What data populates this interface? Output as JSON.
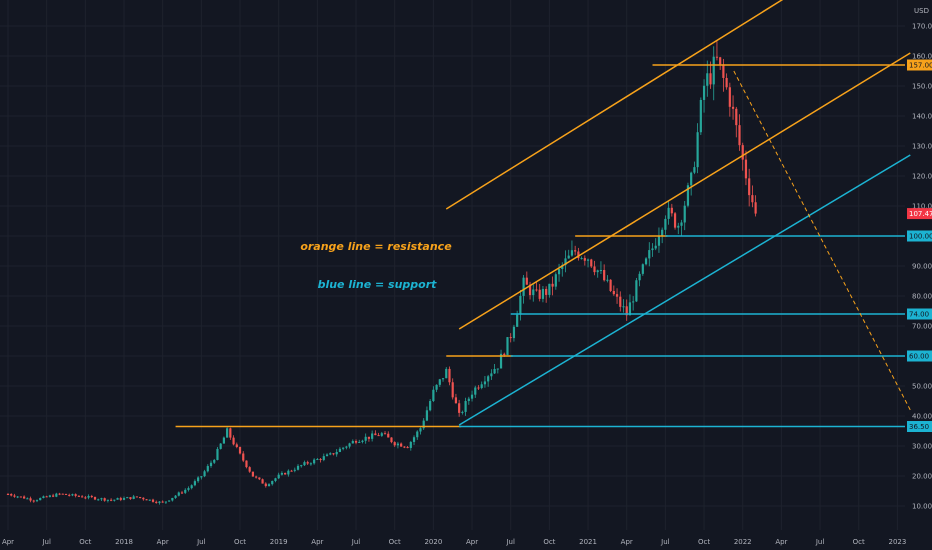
{
  "chart_data": {
    "type": "candlestick",
    "currency_label": "USD",
    "y_ticks": [
      10,
      20,
      30,
      40,
      50,
      60,
      70,
      80,
      90,
      100,
      110,
      120,
      130,
      140,
      150,
      160,
      170
    ],
    "y_tick_labels": [
      "10.00",
      "20.00",
      "30.00",
      "40.00",
      "50.00",
      "60.00",
      "70.00",
      "80.00",
      "90.00",
      "100.00",
      "110.00",
      "120.00",
      "130.00",
      "140.00",
      "150.00",
      "160.00",
      "170.00"
    ],
    "x_ticks": [
      "Apr",
      "Jul",
      "Oct",
      "2018",
      "Apr",
      "Jul",
      "Oct",
      "2019",
      "Apr",
      "Jul",
      "Oct",
      "2020",
      "Apr",
      "Jul",
      "Oct",
      "2021",
      "Apr",
      "Jul",
      "Oct",
      "2022",
      "Apr",
      "Jul",
      "Oct",
      "2023"
    ],
    "start_label": "Apr 2017",
    "last_price": 107.47,
    "last_price_label": "107.47",
    "resistance_levels": [
      {
        "value": 157,
        "label": "157.00",
        "from": "2021-06"
      },
      {
        "value": 100,
        "label": "",
        "from": "2020-12"
      },
      {
        "value": 60,
        "label": "",
        "from": "2020-02"
      },
      {
        "value": 36.5,
        "label": "",
        "from": "2018-05"
      }
    ],
    "support_levels": [
      {
        "value": 100,
        "label": "100.00",
        "from": "2021-07"
      },
      {
        "value": 74,
        "label": "74.00",
        "from": "2020-07"
      },
      {
        "value": 60,
        "label": "60.00",
        "from": "2020-07"
      },
      {
        "value": 36.5,
        "label": "36.50",
        "from": "2020-03"
      }
    ],
    "channel_lines": [
      {
        "color": "orange",
        "from": [
          "2020-02",
          109
        ],
        "to": [
          "2022-12",
          200
        ]
      },
      {
        "color": "orange",
        "from": [
          "2020-03",
          69
        ],
        "to": [
          "2023-02",
          161
        ]
      },
      {
        "color": "blue",
        "from": [
          "2020-03",
          37
        ],
        "to": [
          "2023-02",
          127
        ]
      }
    ],
    "projection": {
      "color": "orange",
      "style": "dashed",
      "from": [
        "2021-12",
        155
      ],
      "to": [
        "2023-02",
        42
      ]
    },
    "price_path": [
      [
        "2017-04",
        14
      ],
      [
        "2017-06",
        12
      ],
      [
        "2017-08",
        14
      ],
      [
        "2017-10",
        13
      ],
      [
        "2017-12",
        12
      ],
      [
        "2018-02",
        13
      ],
      [
        "2018-04",
        11
      ],
      [
        "2018-06",
        16
      ],
      [
        "2018-07",
        20
      ],
      [
        "2018-08",
        26
      ],
      [
        "2018-09",
        35
      ],
      [
        "2018-10",
        27
      ],
      [
        "2018-11",
        20
      ],
      [
        "2018-12",
        17
      ],
      [
        "2019-01",
        20
      ],
      [
        "2019-03",
        24
      ],
      [
        "2019-05",
        27
      ],
      [
        "2019-07",
        32
      ],
      [
        "2019-09",
        34
      ],
      [
        "2019-10",
        31
      ],
      [
        "2019-11",
        30
      ],
      [
        "2019-12",
        36
      ],
      [
        "2020-01",
        48
      ],
      [
        "2020-02",
        55
      ],
      [
        "2020-03",
        40
      ],
      [
        "2020-04",
        48
      ],
      [
        "2020-05",
        53
      ],
      [
        "2020-06",
        57
      ],
      [
        "2020-07",
        67
      ],
      [
        "2020-08",
        84
      ],
      [
        "2020-09",
        80
      ],
      [
        "2020-10",
        82
      ],
      [
        "2020-11",
        90
      ],
      [
        "2020-12",
        95
      ],
      [
        "2021-01",
        93
      ],
      [
        "2021-02",
        87
      ],
      [
        "2021-03",
        80
      ],
      [
        "2021-04",
        74
      ],
      [
        "2021-05",
        86
      ],
      [
        "2021-06",
        96
      ],
      [
        "2021-07",
        108
      ],
      [
        "2021-08",
        104
      ],
      [
        "2021-09",
        118
      ],
      [
        "2021-10",
        150
      ],
      [
        "2021-11",
        158
      ],
      [
        "2021-12",
        146
      ],
      [
        "2022-01",
        125
      ],
      [
        "2022-02",
        107.47
      ]
    ]
  },
  "annotations": {
    "resistance_note": "orange line = resistance",
    "support_note": "blue line = support"
  },
  "colors": {
    "background": "#131722",
    "resistance": "#f7a21b",
    "support": "#1cb3d2",
    "bull_candle": "#26a69a",
    "bear_candle": "#ef5350",
    "last_price": "#f23645",
    "grid": "#1e222d"
  }
}
